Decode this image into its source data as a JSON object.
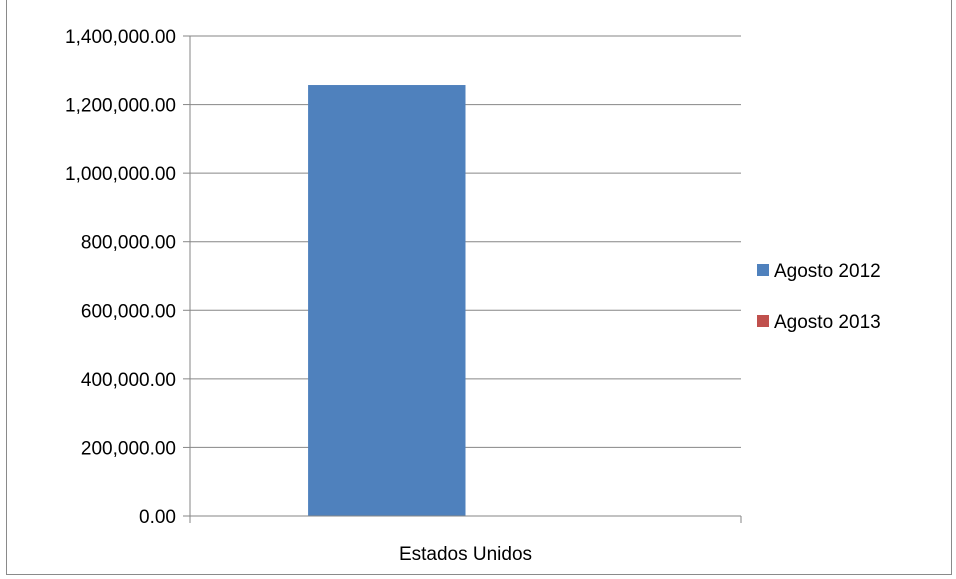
{
  "chart_data": {
    "type": "bar",
    "categories": [
      "Estados Unidos"
    ],
    "series": [
      {
        "name": "Agosto 2012",
        "values": [
          1257000
        ]
      },
      {
        "name": "Agosto 2013",
        "values": [
          0
        ]
      }
    ],
    "ylim": [
      0,
      1400000
    ],
    "yticks": [
      "0.00",
      "200,000.00",
      "400,000.00",
      "600,000.00",
      "800,000.00",
      "1,000,000.00",
      "1,200,000.00",
      "1,400,000.00"
    ],
    "grid": true,
    "legend_position": "right",
    "colors": {
      "Agosto 2012": "#4f81bd",
      "Agosto 2013": "#c0504d",
      "grid": "#868686",
      "axis": "#868686"
    }
  }
}
